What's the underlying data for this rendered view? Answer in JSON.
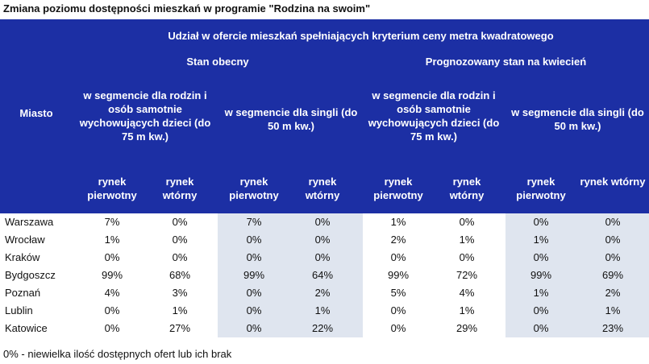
{
  "title": "Zmiana poziomu dostępności mieszkań w programie \"Rodzina na swoim\"",
  "header": {
    "top": "Udział w ofercie mieszkań spełniających kryterium ceny metra kwadratowego",
    "city_col": "Miasto",
    "groups": [
      {
        "label": "Stan obecny",
        "segments": [
          "w segmencie dla rodzin i osób samotnie wychowujących dzieci (do 75 m kw.)",
          "w segmencie dla singli (do 50 m kw.)"
        ]
      },
      {
        "label": "Prognozowany stan na kwiecień",
        "segments": [
          "w segmencie dla rodzin i osób samotnie wychowujących dzieci (do 75 m kw.)",
          "w segmencie dla singli (do 50 m kw.)"
        ]
      }
    ],
    "markets": [
      "rynek pierwotny",
      "rynek wtórny",
      "rynek pierwotny",
      "rynek wtórny",
      "rynek pierwotny",
      "rynek wtórny",
      "rynek pierwotny",
      "rynek wtórny"
    ]
  },
  "rows": [
    {
      "city": "Warszawa",
      "values": [
        "7%",
        "0%",
        "7%",
        "0%",
        "1%",
        "0%",
        "0%",
        "0%"
      ]
    },
    {
      "city": "Wrocław",
      "values": [
        "1%",
        "0%",
        "0%",
        "0%",
        "2%",
        "1%",
        "1%",
        "0%"
      ]
    },
    {
      "city": "Kraków",
      "values": [
        "0%",
        "0%",
        "0%",
        "0%",
        "0%",
        "0%",
        "0%",
        "0%"
      ]
    },
    {
      "city": "Bydgoszcz",
      "values": [
        "99%",
        "68%",
        "99%",
        "64%",
        "99%",
        "72%",
        "99%",
        "69%"
      ]
    },
    {
      "city": "Poznań",
      "values": [
        "4%",
        "3%",
        "0%",
        "2%",
        "5%",
        "4%",
        "1%",
        "2%"
      ]
    },
    {
      "city": "Lublin",
      "values": [
        "0%",
        "1%",
        "0%",
        "1%",
        "0%",
        "1%",
        "0%",
        "1%"
      ]
    },
    {
      "city": "Katowice",
      "values": [
        "0%",
        "27%",
        "0%",
        "22%",
        "0%",
        "29%",
        "0%",
        "23%"
      ]
    }
  ],
  "note": "0% - niewielka ilość dostępnych ofert lub ich brak",
  "colors": {
    "header_bg": "#1c2fa4",
    "shade": "#dfe5ef"
  }
}
